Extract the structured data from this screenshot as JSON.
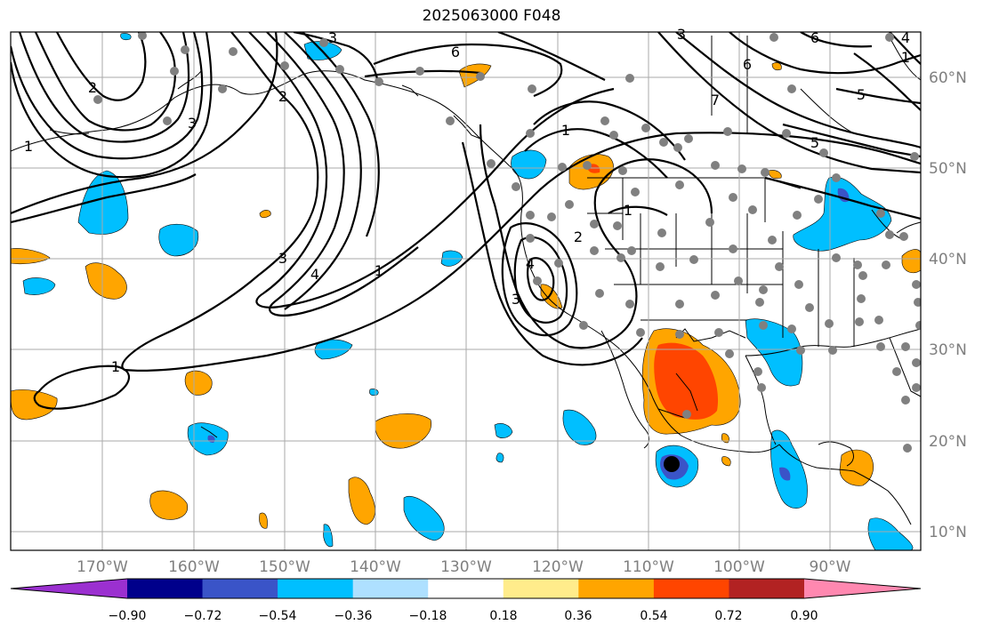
{
  "title": "2025063000 F048",
  "lon_labels": [
    "170°W",
    "160°W",
    "150°W",
    "140°W",
    "130°W",
    "120°W",
    "110°W",
    "100°W",
    "90°W"
  ],
  "lat_labels": [
    "60°N",
    "50°N",
    "40°N",
    "30°N",
    "20°N",
    "10°N"
  ],
  "colorbar": {
    "ticks": [
      "−0.90",
      "−0.72",
      "−0.54",
      "−0.36",
      "−0.18",
      "0.18",
      "0.36",
      "0.54",
      "0.72",
      "0.90"
    ],
    "colors": [
      "#9b30d0",
      "#00008b",
      "#3a54c8",
      "#00bfff",
      "#aee0ff",
      "#ffffff",
      "#ffec8b",
      "#ffa500",
      "#ff4500",
      "#b22222",
      "#ff88b0"
    ]
  },
  "contour_labels": [
    "3",
    "6",
    "2",
    "6",
    "3",
    "4",
    "6",
    "5",
    "2",
    "3",
    "1",
    "7",
    "5",
    "1",
    "1",
    "1",
    "2",
    "4",
    "3",
    "4",
    "1",
    "3",
    "1"
  ],
  "colors": {
    "anomaly_positive": "#ffa500",
    "anomaly_strong_positive": "#ff4500",
    "anomaly_negative": "#00bfff",
    "anomaly_strong_negative": "#3a54c8",
    "station_dot": "#808080",
    "grid": "#aaaaaa"
  }
}
